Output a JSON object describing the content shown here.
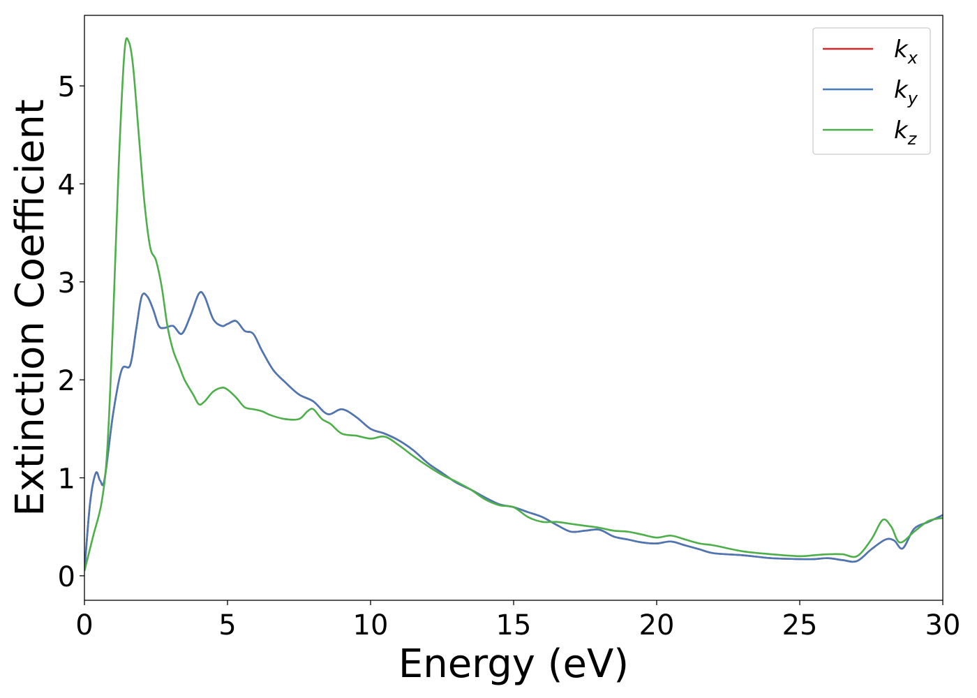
{
  "chart_data": {
    "type": "line",
    "xlabel": "Energy (eV)",
    "ylabel": "Extinction Coefficient",
    "xlim": [
      0,
      30
    ],
    "ylim": [
      -0.25,
      5.72
    ],
    "xticks": [
      0,
      5,
      10,
      15,
      20,
      25,
      30
    ],
    "xtick_labels": [
      "0",
      "5",
      "10",
      "15",
      "20",
      "25",
      "30"
    ],
    "yticks": [
      0,
      1,
      2,
      3,
      4,
      5
    ],
    "ytick_labels": [
      "0",
      "1",
      "2",
      "3",
      "4",
      "5"
    ],
    "grid": false,
    "legend_position": "top-right",
    "series": [
      {
        "name": "k",
        "subscript": "x",
        "color": "#d62728",
        "x": [
          0,
          0.2,
          0.4,
          0.55,
          0.7,
          1.0,
          1.3,
          1.6,
          1.8,
          2.0,
          2.2,
          2.4,
          2.6,
          2.8,
          3.1,
          3.4,
          3.7,
          4.0,
          4.2,
          4.5,
          4.8,
          5.0,
          5.3,
          5.6,
          5.9,
          6.2,
          6.6,
          7.0,
          7.5,
          8.0,
          8.5,
          9.0,
          9.5,
          10.0,
          10.5,
          11.0,
          11.5,
          12.0,
          12.5,
          13.0,
          13.5,
          14.0,
          14.5,
          15.0,
          15.5,
          16.0,
          16.5,
          17.0,
          17.5,
          18.0,
          18.5,
          19.0,
          19.5,
          20.0,
          20.5,
          21.0,
          21.5,
          22.0,
          23.0,
          24.0,
          25.0,
          25.5,
          26.0,
          26.5,
          27.0,
          27.5,
          28.0,
          28.3,
          28.6,
          29.0,
          29.5,
          30.0
        ],
        "y": [
          0.05,
          0.75,
          1.05,
          0.97,
          0.98,
          1.65,
          2.1,
          2.15,
          2.5,
          2.85,
          2.85,
          2.72,
          2.55,
          2.53,
          2.55,
          2.47,
          2.65,
          2.88,
          2.85,
          2.62,
          2.55,
          2.57,
          2.6,
          2.5,
          2.47,
          2.3,
          2.1,
          1.98,
          1.85,
          1.78,
          1.65,
          1.7,
          1.62,
          1.5,
          1.45,
          1.38,
          1.28,
          1.15,
          1.05,
          0.95,
          0.88,
          0.8,
          0.73,
          0.7,
          0.65,
          0.6,
          0.52,
          0.45,
          0.46,
          0.47,
          0.4,
          0.37,
          0.34,
          0.33,
          0.35,
          0.31,
          0.27,
          0.23,
          0.21,
          0.18,
          0.17,
          0.17,
          0.18,
          0.16,
          0.15,
          0.27,
          0.37,
          0.36,
          0.28,
          0.48,
          0.55,
          0.62
        ]
      },
      {
        "name": "k",
        "subscript": "y",
        "color": "#4a78b5",
        "x": [
          0,
          0.2,
          0.4,
          0.55,
          0.7,
          1.0,
          1.3,
          1.6,
          1.8,
          2.0,
          2.2,
          2.4,
          2.6,
          2.8,
          3.1,
          3.4,
          3.7,
          4.0,
          4.2,
          4.5,
          4.8,
          5.0,
          5.3,
          5.6,
          5.9,
          6.2,
          6.6,
          7.0,
          7.5,
          8.0,
          8.5,
          9.0,
          9.5,
          10.0,
          10.5,
          11.0,
          11.5,
          12.0,
          12.5,
          13.0,
          13.5,
          14.0,
          14.5,
          15.0,
          15.5,
          16.0,
          16.5,
          17.0,
          17.5,
          18.0,
          18.5,
          19.0,
          19.5,
          20.0,
          20.5,
          21.0,
          21.5,
          22.0,
          23.0,
          24.0,
          25.0,
          25.5,
          26.0,
          26.5,
          27.0,
          27.5,
          28.0,
          28.3,
          28.6,
          29.0,
          29.5,
          30.0
        ],
        "y": [
          0.05,
          0.75,
          1.05,
          0.97,
          0.98,
          1.65,
          2.1,
          2.15,
          2.5,
          2.85,
          2.85,
          2.72,
          2.55,
          2.53,
          2.55,
          2.47,
          2.65,
          2.88,
          2.85,
          2.62,
          2.55,
          2.57,
          2.6,
          2.5,
          2.47,
          2.3,
          2.1,
          1.98,
          1.85,
          1.78,
          1.65,
          1.7,
          1.62,
          1.5,
          1.45,
          1.38,
          1.28,
          1.15,
          1.05,
          0.95,
          0.88,
          0.8,
          0.73,
          0.7,
          0.65,
          0.6,
          0.52,
          0.45,
          0.46,
          0.47,
          0.4,
          0.37,
          0.34,
          0.33,
          0.35,
          0.31,
          0.27,
          0.23,
          0.21,
          0.18,
          0.17,
          0.17,
          0.18,
          0.16,
          0.15,
          0.27,
          0.37,
          0.36,
          0.28,
          0.48,
          0.55,
          0.62
        ]
      },
      {
        "name": "k",
        "subscript": "z",
        "color": "#4daf4a",
        "x": [
          0,
          0.3,
          0.6,
          0.8,
          1.0,
          1.2,
          1.4,
          1.55,
          1.7,
          1.9,
          2.1,
          2.3,
          2.5,
          2.7,
          2.9,
          3.1,
          3.3,
          3.5,
          3.8,
          4.0,
          4.2,
          4.5,
          4.8,
          5.0,
          5.3,
          5.6,
          5.9,
          6.2,
          6.5,
          7.0,
          7.5,
          7.8,
          8.0,
          8.3,
          8.6,
          9.0,
          9.5,
          10.0,
          10.5,
          11.0,
          11.5,
          12.0,
          12.5,
          13.0,
          13.5,
          14.0,
          14.5,
          15.0,
          15.5,
          16.0,
          16.5,
          17.0,
          17.5,
          18.0,
          18.5,
          19.0,
          19.5,
          20.0,
          20.5,
          21.0,
          21.5,
          22.0,
          23.0,
          24.0,
          25.0,
          25.5,
          26.0,
          26.5,
          27.0,
          27.5,
          27.9,
          28.2,
          28.5,
          29.0,
          29.5,
          30.0
        ],
        "y": [
          0.05,
          0.4,
          0.75,
          1.3,
          2.6,
          4.2,
          5.35,
          5.45,
          5.2,
          4.5,
          3.8,
          3.35,
          3.22,
          2.95,
          2.55,
          2.3,
          2.15,
          2.0,
          1.85,
          1.75,
          1.78,
          1.88,
          1.92,
          1.9,
          1.82,
          1.72,
          1.7,
          1.68,
          1.64,
          1.6,
          1.6,
          1.68,
          1.7,
          1.6,
          1.55,
          1.45,
          1.43,
          1.4,
          1.42,
          1.33,
          1.22,
          1.12,
          1.03,
          0.96,
          0.88,
          0.78,
          0.72,
          0.7,
          0.6,
          0.55,
          0.55,
          0.53,
          0.51,
          0.49,
          0.46,
          0.45,
          0.42,
          0.39,
          0.41,
          0.37,
          0.33,
          0.31,
          0.25,
          0.22,
          0.2,
          0.21,
          0.22,
          0.22,
          0.2,
          0.37,
          0.57,
          0.5,
          0.34,
          0.45,
          0.56,
          0.59
        ]
      }
    ]
  }
}
